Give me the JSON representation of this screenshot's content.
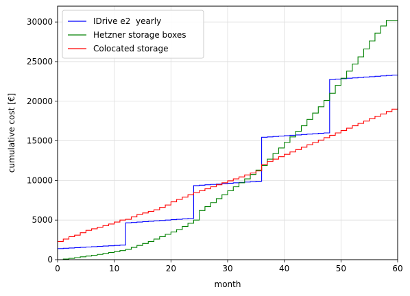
{
  "chart_data": {
    "type": "line",
    "title": "",
    "xlabel": "month",
    "ylabel": "cumulative cost [€]",
    "xlim": [
      0,
      60
    ],
    "ylim": [
      0,
      32000
    ],
    "xticks": [
      0,
      10,
      20,
      30,
      40,
      50,
      60
    ],
    "yticks": [
      0,
      5000,
      10000,
      15000,
      20000,
      25000,
      30000
    ],
    "grid": true,
    "legend_position": "top-left",
    "step": true,
    "x": [
      0,
      1,
      2,
      3,
      4,
      5,
      6,
      7,
      8,
      9,
      10,
      11,
      12,
      13,
      14,
      15,
      16,
      17,
      18,
      19,
      20,
      21,
      22,
      23,
      24,
      25,
      26,
      27,
      28,
      29,
      30,
      31,
      32,
      33,
      34,
      35,
      36,
      37,
      38,
      39,
      40,
      41,
      42,
      43,
      44,
      45,
      46,
      47,
      48,
      49,
      50,
      51,
      52,
      53,
      54,
      55,
      56,
      57,
      58,
      59,
      60
    ],
    "series": [
      {
        "name": "IDrive e2  yearly",
        "color": "#0000ff",
        "values": [
          1400,
          1440,
          1480,
          1520,
          1560,
          1600,
          1640,
          1680,
          1720,
          1760,
          1800,
          1840,
          4650,
          4700,
          4750,
          4800,
          4850,
          4900,
          4950,
          5000,
          5050,
          5100,
          5150,
          5200,
          9350,
          9400,
          9450,
          9500,
          9550,
          9600,
          9650,
          9700,
          9750,
          9800,
          9850,
          9900,
          15450,
          15500,
          15550,
          15600,
          15650,
          15700,
          15750,
          15800,
          15850,
          15900,
          15950,
          16000,
          22750,
          22800,
          22850,
          22900,
          22950,
          23000,
          23050,
          23100,
          23150,
          23200,
          23250,
          23300,
          23350
        ]
      },
      {
        "name": "Hetzner storage boxes",
        "color": "#008000",
        "values": [
          0,
          80,
          170,
          260,
          360,
          460,
          560,
          670,
          780,
          900,
          1020,
          1150,
          1300,
          1550,
          1800,
          2050,
          2300,
          2600,
          2900,
          3200,
          3500,
          3800,
          4200,
          4600,
          5000,
          6200,
          6700,
          7200,
          7700,
          8200,
          8700,
          9200,
          9700,
          10200,
          10750,
          11300,
          11900,
          12700,
          13400,
          14100,
          14800,
          15500,
          16200,
          16900,
          17700,
          18500,
          19300,
          20100,
          21000,
          22000,
          22900,
          23800,
          24700,
          25600,
          26600,
          27600,
          28600,
          29500,
          30200,
          30200,
          30200
        ]
      },
      {
        "name": "Colocated storage",
        "color": "#ff0000",
        "values": [
          2300,
          2600,
          2900,
          3100,
          3400,
          3700,
          3900,
          4100,
          4300,
          4500,
          4750,
          5000,
          5100,
          5400,
          5700,
          5900,
          6100,
          6300,
          6600,
          6900,
          7300,
          7600,
          7900,
          8200,
          8450,
          8700,
          8950,
          9200,
          9450,
          9700,
          9950,
          10200,
          10450,
          10700,
          10950,
          11200,
          12000,
          12400,
          12700,
          13000,
          13300,
          13600,
          13900,
          14200,
          14500,
          14800,
          15100,
          15400,
          15700,
          16000,
          16300,
          16600,
          16900,
          17200,
          17500,
          17800,
          18100,
          18400,
          18700,
          19000,
          19200
        ]
      }
    ]
  }
}
